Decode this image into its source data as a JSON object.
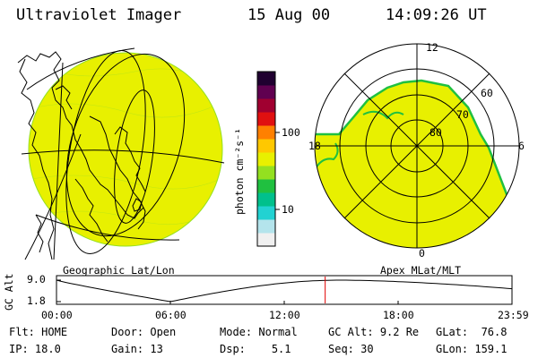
{
  "header": {
    "instrument": "Ultraviolet Imager",
    "date": "15 Aug 00",
    "time": "14:09:26 UT"
  },
  "geo_panel": {
    "label": "Geographic Lat/Lon"
  },
  "mag_panel": {
    "label": "Apex MLat/MLT",
    "mlt_labels": {
      "top": "12",
      "left": "18",
      "right": "6",
      "bottom": "0"
    },
    "mlat_labels": [
      "60",
      "70",
      "80"
    ]
  },
  "colorbar": {
    "title": "photon cm⁻²s⁻¹",
    "ticks": [
      "100",
      "10"
    ],
    "colors": [
      "#f0f0f0",
      "#b4e4ec",
      "#22d2d2",
      "#00c08c",
      "#20c040",
      "#94e020",
      "#e8f000",
      "#ffc800",
      "#ff8000",
      "#e01010",
      "#a00030",
      "#600050",
      "#200030"
    ]
  },
  "timeline": {
    "axis_title": "GC Alt",
    "y_ticks": [
      "9.0",
      "1.8"
    ],
    "x_ticks": [
      "00:00",
      "06:00",
      "12:00",
      "18:00",
      "23:59"
    ],
    "current_time_hours": 14.157
  },
  "status": {
    "row1": [
      {
        "label": "Flt:",
        "value": "HOME"
      },
      {
        "label": "Door:",
        "value": "Open"
      },
      {
        "label": "Mode:",
        "value": "Normal"
      },
      {
        "label": "GC Alt:",
        "value": "9.2 Re"
      },
      {
        "label": "GLat:",
        "value": "76.8"
      }
    ],
    "row2": [
      {
        "label": "IP:",
        "value": "18.0"
      },
      {
        "label": "Gain:",
        "value": "13"
      },
      {
        "label": "Dsp:",
        "value": "5.1"
      },
      {
        "label": "Seq:",
        "value": "30"
      },
      {
        "label": "GLon:",
        "value": "159.1"
      }
    ]
  },
  "colors": {
    "image_fill": "#e8f000",
    "image_edge": "#20c040",
    "cursor": "#e00000"
  }
}
